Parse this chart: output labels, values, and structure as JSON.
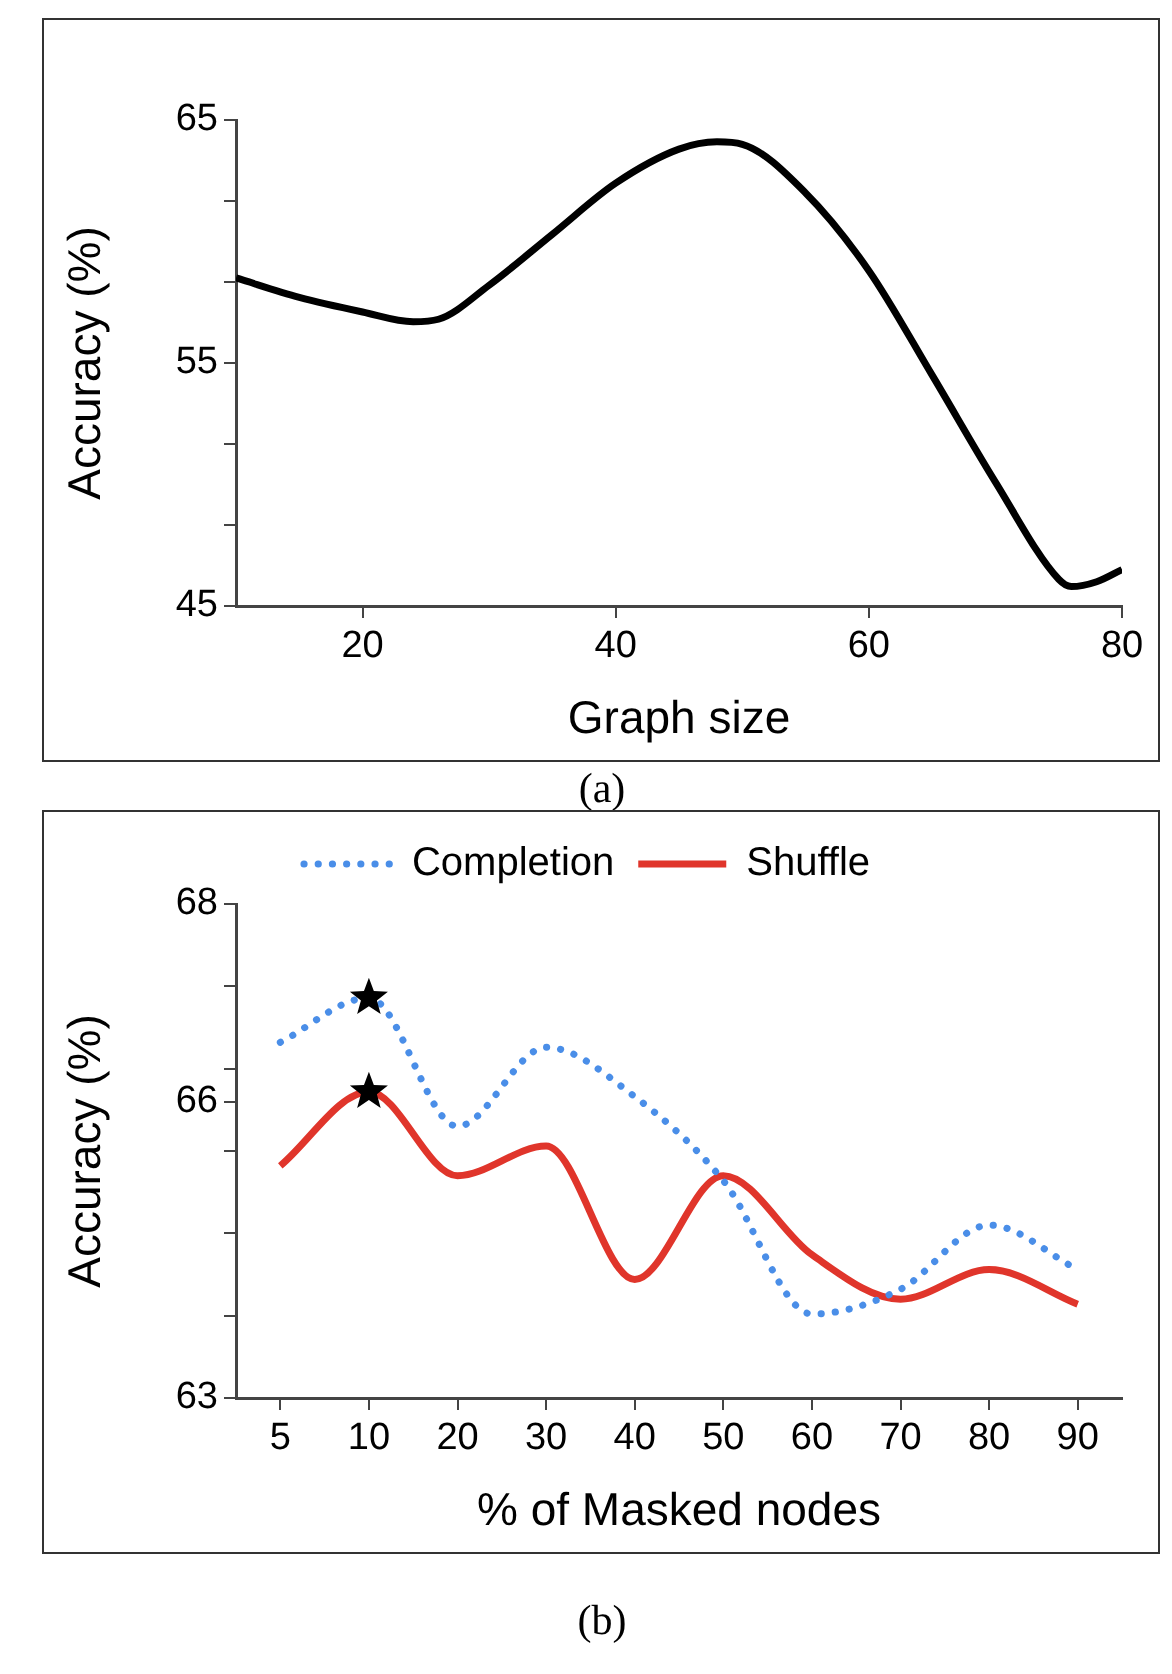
{
  "chart_data": [
    {
      "type": "line",
      "xlabel": "Graph size",
      "ylabel": "Accuracy (%)",
      "annotations": [
        "(a)"
      ],
      "xlim": [
        10,
        80
      ],
      "xticks": [
        20,
        40,
        60,
        80
      ],
      "ylim": [
        45,
        65
      ],
      "yticks": [
        45,
        {
          "value": 48.33,
          "label": null
        },
        {
          "value": 51.67,
          "label": null
        },
        55,
        {
          "value": 58.33,
          "label": null
        },
        {
          "value": 61.67,
          "label": null
        },
        65
      ],
      "series": [
        {
          "color": "#000000",
          "x": [
            10,
            15,
            20,
            24,
            26,
            30,
            35,
            40,
            45,
            48,
            50,
            55,
            60,
            65,
            70,
            75,
            76,
            78,
            80
          ],
          "values": [
            58.5,
            57.7,
            57.1,
            56.7,
            56.8,
            58.2,
            60.3,
            62.4,
            63.8,
            64.1,
            64.0,
            62.0,
            58.8,
            54.5,
            50.1,
            46.1,
            45.8,
            46.0,
            46.5
          ]
        }
      ]
    },
    {
      "type": "line",
      "xlabel": "% of Masked nodes",
      "ylabel": "Accuracy (%)",
      "annotations": [
        "(b)"
      ],
      "legend": "top",
      "categories": [
        "5",
        "10",
        "20",
        "30",
        "40",
        "50",
        "60",
        "70",
        "80",
        "90"
      ],
      "ylim": [
        63,
        68
      ],
      "yticks": [
        63,
        {
          "value": 63.83,
          "label": null
        },
        {
          "value": 64.67,
          "label": null
        },
        {
          "value": 65.5,
          "label": null
        },
        66,
        {
          "value": 66.33,
          "label": null
        },
        {
          "value": 67.17,
          "label": null
        },
        68
      ],
      "series": [
        {
          "name": "Completion",
          "color": "#4a8ee8",
          "line_style": "dotted",
          "values": [
            66.6,
            67.05,
            65.75,
            66.55,
            66.05,
            65.2,
            63.85,
            64.1,
            64.75,
            64.3
          ]
        },
        {
          "name": "Shuffle",
          "color": "#e0352b",
          "line_style": "solid",
          "values": [
            65.35,
            66.1,
            65.25,
            65.55,
            64.2,
            65.25,
            64.45,
            64.0,
            64.3,
            63.95
          ]
        },
        {
          "type": "scatter",
          "marker": "star",
          "color": "#000000",
          "x": [
            "10",
            "10"
          ],
          "values": [
            67.05,
            66.1
          ]
        }
      ]
    }
  ]
}
